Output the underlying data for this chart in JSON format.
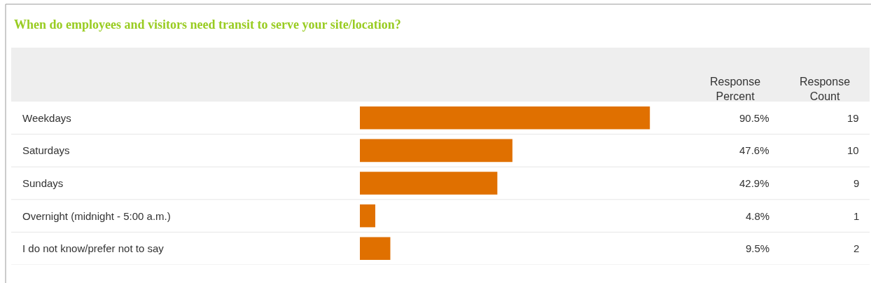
{
  "chart_data": {
    "type": "bar",
    "orientation": "horizontal",
    "title": "When do employees and visitors need transit to serve your site/location?",
    "categories": [
      "Weekdays",
      "Saturdays",
      "Sundays",
      "Overnight (midnight - 5:00 a.m.)",
      "I do not know/prefer not to say"
    ],
    "values": [
      90.5,
      47.6,
      42.9,
      4.8,
      9.5
    ],
    "value_labels": [
      "90.5%",
      "47.6%",
      "42.9%",
      "4.8%",
      "9.5%"
    ],
    "color": "#e07000",
    "tick_labels": "y",
    "grid": false,
    "annotations": [
      "Response Percent",
      "Response Count",
      "19",
      "10",
      "9",
      "1",
      "2"
    ]
  }
}
